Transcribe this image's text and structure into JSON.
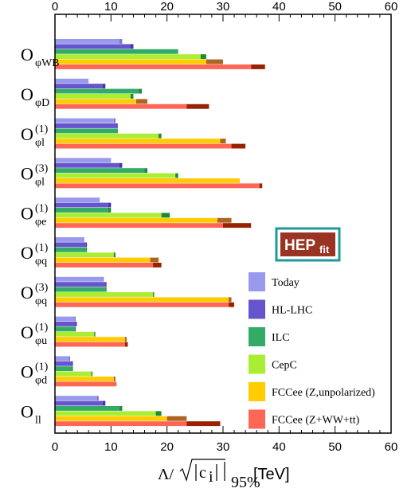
{
  "chart_data": {
    "type": "bar",
    "orientation": "horizontal",
    "xlim": [
      0,
      60
    ],
    "xticks": [
      0,
      10,
      20,
      30,
      40,
      50,
      60
    ],
    "xlabel": {
      "lambda": "Λ/",
      "c": "c",
      "i": "i",
      "sub": "95%",
      "unit": "[TeV]"
    },
    "grid": false,
    "legend_placement": "right",
    "logo": {
      "main": "HEP",
      "sub": "fit"
    },
    "categories": [
      {
        "main": "O",
        "sub": "φWB",
        "sup": ""
      },
      {
        "main": "O",
        "sub": "φD",
        "sup": ""
      },
      {
        "main": "O",
        "sub": "φl",
        "sup": "(1)"
      },
      {
        "main": "O",
        "sub": "φl",
        "sup": "(3)"
      },
      {
        "main": "O",
        "sub": "φe",
        "sup": "(1)"
      },
      {
        "main": "O",
        "sub": "φq",
        "sup": "(1)"
      },
      {
        "main": "O",
        "sub": "φq",
        "sup": "(3)"
      },
      {
        "main": "O",
        "sub": "φu",
        "sup": "(1)"
      },
      {
        "main": "O",
        "sub": "φd",
        "sup": "(1)"
      },
      {
        "main": "O",
        "sub": "ll",
        "sup": ""
      }
    ],
    "series": [
      {
        "name": "Today",
        "color": "#9999ee",
        "dark": "#7777cc",
        "values": [
          11.5,
          6.0,
          10.5,
          10.0,
          8.0,
          5.0,
          8.5,
          3.5,
          2.5,
          7.5
        ],
        "extended": [
          12.0,
          6.0,
          10.8,
          10.0,
          8.0,
          5.2,
          8.7,
          3.7,
          2.7,
          7.8
        ]
      },
      {
        "name": "HL-LHC",
        "color": "#6655cc",
        "dark": "#4433aa",
        "values": [
          13.5,
          8.5,
          11.0,
          11.5,
          9.5,
          5.5,
          9.0,
          3.7,
          3.0,
          8.5
        ],
        "extended": [
          14.0,
          9.0,
          11.2,
          12.0,
          10.0,
          5.7,
          9.2,
          3.9,
          3.2,
          9.0
        ]
      },
      {
        "name": "ILC",
        "color": "#33aa66",
        "dark": "#228844",
        "values": [
          22.0,
          15.0,
          11.0,
          16.0,
          9.5,
          5.5,
          9.0,
          3.5,
          3.0,
          11.5
        ],
        "extended": [
          22.0,
          15.5,
          11.2,
          16.5,
          10.0,
          5.7,
          9.2,
          3.7,
          3.2,
          12.0
        ]
      },
      {
        "name": "CepC",
        "color": "#aaee33",
        "dark": "#228833",
        "values": [
          26.0,
          13.5,
          18.5,
          21.5,
          19.0,
          10.5,
          17.5,
          7.0,
          6.5,
          18.0
        ],
        "extended": [
          27.0,
          14.0,
          19.0,
          22.0,
          20.5,
          10.8,
          17.7,
          7.2,
          6.7,
          19.0
        ]
      },
      {
        "name": "FCCee (Z,unpolarized)",
        "color": "#ffcc00",
        "dark": "#aa6622",
        "values": [
          27.0,
          14.5,
          29.5,
          33.0,
          29.0,
          17.0,
          31.0,
          12.5,
          10.5,
          20.0
        ],
        "extended": [
          30.0,
          16.5,
          30.5,
          33.0,
          31.5,
          18.5,
          31.5,
          12.8,
          10.8,
          23.5
        ]
      },
      {
        "name": "FCCee (Z+WW+tt)",
        "color": "#ff6655",
        "dark": "#992200",
        "values": [
          35.0,
          23.5,
          31.5,
          36.5,
          30.0,
          17.5,
          31.0,
          12.5,
          11.0,
          23.5
        ],
        "extended": [
          37.5,
          27.5,
          34.0,
          37.0,
          35.0,
          19.0,
          32.0,
          13.0,
          11.0,
          29.5
        ]
      }
    ]
  }
}
